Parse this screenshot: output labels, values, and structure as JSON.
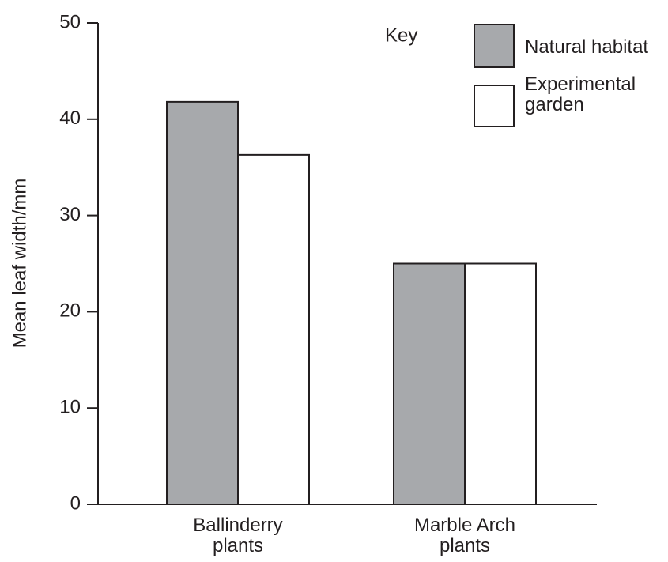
{
  "chart_data": {
    "type": "bar",
    "y_axis_label": "Mean leaf width/mm",
    "legend_title": "Key",
    "categories": [
      "Ballinderry plants",
      "Marble Arch plants"
    ],
    "series": [
      {
        "name": "Natural habitat",
        "color": "#a7a9ac",
        "values": [
          41.8,
          25
        ]
      },
      {
        "name": "Experimental garden",
        "color": "#ffffff",
        "values": [
          36.3,
          25
        ]
      }
    ],
    "ylim": [
      0,
      50
    ],
    "yticks": [
      0,
      10,
      20,
      30,
      40,
      50
    ],
    "grid": false,
    "legend": "upper right"
  }
}
